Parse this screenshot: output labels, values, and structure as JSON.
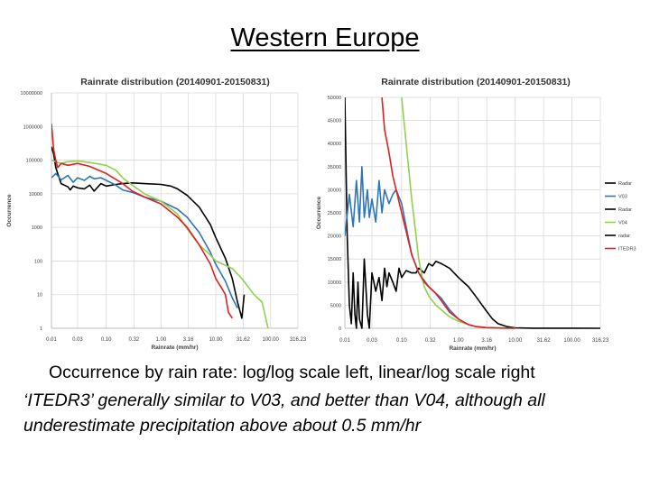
{
  "slide": {
    "title": "Western Europe",
    "caption_line1": "Occurrence by rain rate: log/log scale left, linear/log scale right",
    "caption_line2": "‘ITEDR3’ generally similar to V03, and better than V04, although all",
    "caption_line3": "underestimate precipitation above about 0.5 mm/hr"
  },
  "chart_data": [
    {
      "type": "line",
      "title": "Rainrate distribution (20140901-20150831)",
      "xlabel": "Rainrate (mm/hr)",
      "ylabel": "Occurrence",
      "xscale": "log",
      "yscale": "log",
      "xlim": [
        0.01,
        316.23
      ],
      "ylim": [
        1,
        10000000
      ],
      "x_ticks": [
        "0.01",
        "0.03",
        "0.10",
        "0.32",
        "1.00",
        "3.16",
        "10.00",
        "31.62",
        "100.00",
        "316.23"
      ],
      "y_ticks": [
        "1",
        "10",
        "100",
        "1000",
        "10000",
        "100000",
        "1000000",
        "10000000"
      ],
      "series": [
        {
          "name": "Radar",
          "color": "#000000",
          "x": [
            0.01,
            0.011,
            0.012,
            0.013,
            0.015,
            0.02,
            0.022,
            0.025,
            0.03,
            0.04,
            0.05,
            0.06,
            0.08,
            0.1,
            0.15,
            0.2,
            0.3,
            0.5,
            1.0,
            1.5,
            2.0,
            3.0,
            5.0,
            8.0,
            10.0,
            15.0,
            20.0,
            25.0,
            30.0,
            33.0
          ],
          "y": [
            250000,
            150000,
            60000,
            40000,
            20000,
            16000,
            13000,
            17000,
            15000,
            14000,
            18000,
            12000,
            20000,
            17000,
            19000,
            20000,
            21000,
            20000,
            19000,
            17000,
            14000,
            9000,
            4000,
            1200,
            500,
            120,
            30,
            6,
            2,
            10
          ]
        },
        {
          "name": "V03",
          "color": "#2e75b6",
          "x": [
            0.01,
            0.012,
            0.015,
            0.02,
            0.025,
            0.03,
            0.04,
            0.05,
            0.06,
            0.08,
            0.1,
            0.15,
            0.2,
            0.3,
            0.5,
            1.0,
            2.0,
            3.0,
            5.0,
            8.0,
            10.0,
            15.0,
            20.0,
            25.0
          ],
          "y": [
            30000,
            40000,
            26000,
            35000,
            22000,
            30000,
            25000,
            33000,
            28000,
            30000,
            25000,
            18000,
            13000,
            11000,
            8000,
            6000,
            3500,
            2000,
            700,
            180,
            80,
            25,
            8,
            4
          ]
        },
        {
          "name": "V04",
          "color": "#92d050",
          "x": [
            0.01,
            0.015,
            0.02,
            0.03,
            0.05,
            0.1,
            0.15,
            0.2,
            0.3,
            0.5,
            1.0,
            2.0,
            3.0,
            5.0,
            8.0,
            10.0,
            20.0,
            30.0,
            50.0,
            70.0,
            90.0
          ],
          "y": [
            100000,
            80000,
            90000,
            95000,
            85000,
            70000,
            50000,
            30000,
            18000,
            10000,
            6000,
            2500,
            900,
            300,
            150,
            100,
            60,
            30,
            10,
            6,
            1
          ]
        },
        {
          "name": "ITEDR3",
          "color": "#e02020",
          "x": [
            0.01,
            0.011,
            0.012,
            0.013,
            0.015,
            0.02,
            0.03,
            0.05,
            0.1,
            0.2,
            0.3,
            0.5,
            1.0,
            2.0,
            3.0,
            5.0,
            8.0,
            10.0,
            13.0,
            15.0,
            17.0,
            20.0
          ],
          "y": [
            1200000,
            200000,
            100000,
            60000,
            80000,
            70000,
            80000,
            65000,
            40000,
            20000,
            12000,
            8000,
            5000,
            2000,
            1000,
            300,
            80,
            30,
            15,
            10,
            3,
            2
          ]
        }
      ]
    },
    {
      "type": "line",
      "title": "Rainrate distribution (20140901-20150831)",
      "xlabel": "Rainrate (mm/hr)",
      "ylabel": "Occurrence",
      "xscale": "log",
      "yscale": "linear",
      "xlim": [
        0.01,
        316.23
      ],
      "ylim": [
        0,
        50000
      ],
      "x_ticks": [
        "0.01",
        "0.03",
        "0.10",
        "0.32",
        "1.00",
        "3.16",
        "10.00",
        "31.62",
        "100.00",
        "316.23"
      ],
      "y_ticks": [
        "0",
        "5000",
        "10000",
        "15000",
        "20000",
        "25000",
        "30000",
        "35000",
        "40000",
        "45000",
        "50000"
      ],
      "legend": [
        "Radar",
        "V03",
        "Radar",
        "V04",
        "radar",
        "ITEDR3"
      ],
      "legend_position": "right",
      "series": [
        {
          "name": "Radar",
          "color": "#000000",
          "x": [
            0.01,
            0.011,
            0.012,
            0.013,
            0.014,
            0.015,
            0.016,
            0.017,
            0.018,
            0.02,
            0.022,
            0.025,
            0.027,
            0.03,
            0.035,
            0.04,
            0.045,
            0.05,
            0.055,
            0.06,
            0.07,
            0.08,
            0.09,
            0.1,
            0.12,
            0.15,
            0.18,
            0.2,
            0.25,
            0.3,
            0.35,
            0.4,
            0.5,
            0.7,
            1.0,
            1.5,
            2.0,
            3.0,
            4.0,
            5.0,
            7.0,
            10.0,
            20.0,
            316.23
          ],
          "y": [
            50000,
            20000,
            5000,
            1000,
            12000,
            3000,
            0,
            10000,
            2000,
            0,
            15000,
            3000,
            0,
            12000,
            8000,
            11000,
            6000,
            13000,
            9000,
            12000,
            10000,
            8000,
            13000,
            11000,
            12500,
            12000,
            12000,
            13000,
            12000,
            14000,
            13500,
            14500,
            14000,
            13000,
            11000,
            9000,
            7000,
            4000,
            2000,
            1000,
            400,
            100,
            20,
            0
          ]
        },
        {
          "name": "V03",
          "color": "#2e75b6",
          "x": [
            0.01,
            0.012,
            0.014,
            0.016,
            0.018,
            0.02,
            0.022,
            0.025,
            0.027,
            0.03,
            0.035,
            0.04,
            0.045,
            0.05,
            0.06,
            0.07,
            0.08,
            0.1,
            0.12,
            0.15,
            0.2,
            0.3,
            0.5,
            0.7,
            1.0,
            1.5,
            2.0,
            3.0,
            5.0,
            10.0
          ],
          "y": [
            20000,
            29000,
            22000,
            32000,
            23000,
            35000,
            24000,
            30000,
            24000,
            28000,
            23000,
            32000,
            25000,
            30000,
            27000,
            29000,
            30000,
            27000,
            22000,
            16000,
            12000,
            9000,
            6500,
            4000,
            2000,
            800,
            400,
            150,
            50,
            0
          ]
        },
        {
          "name": "V04",
          "color": "#92d050",
          "x": [
            0.1,
            0.12,
            0.15,
            0.18,
            0.2,
            0.25,
            0.3,
            0.4,
            0.5,
            0.7,
            1.0,
            1.5,
            2.0,
            3.0,
            5.0,
            10.0
          ],
          "y": [
            50000,
            40000,
            28000,
            20000,
            15000,
            9000,
            7000,
            5000,
            4000,
            2500,
            1500,
            800,
            400,
            150,
            50,
            0
          ]
        },
        {
          "name": "ITEDR3",
          "color": "#e02020",
          "x": [
            0.045,
            0.05,
            0.06,
            0.07,
            0.08,
            0.1,
            0.12,
            0.15,
            0.2,
            0.25,
            0.3,
            0.4,
            0.5,
            0.7,
            1.0,
            1.5,
            2.0,
            3.0,
            5.0,
            10.0
          ],
          "y": [
            50000,
            43000,
            38000,
            33000,
            30000,
            25000,
            21000,
            16000,
            12000,
            10000,
            9000,
            7500,
            6000,
            3500,
            2000,
            800,
            400,
            150,
            50,
            0
          ]
        }
      ]
    }
  ]
}
